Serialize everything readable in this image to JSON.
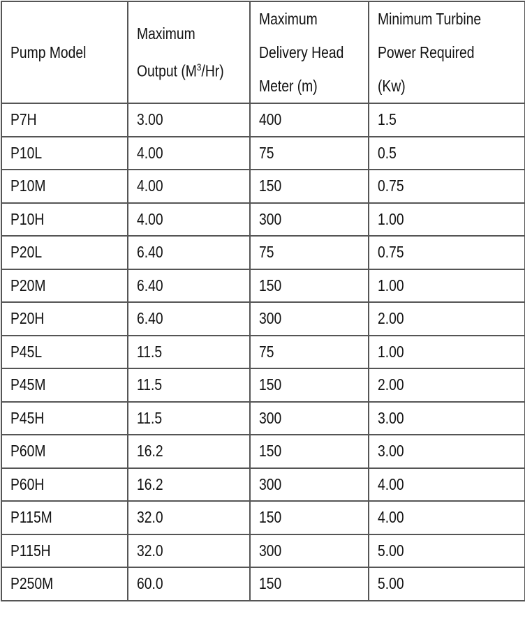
{
  "table": {
    "headers": [
      {
        "lines": [
          "Pump Model"
        ]
      },
      {
        "lines": [
          "Maximum",
          "Output (M",
          "3",
          "/Hr)"
        ]
      },
      {
        "lines": [
          "Maximum",
          "Delivery Head",
          "Meter (m)"
        ]
      },
      {
        "lines": [
          "Minimum Turbine",
          "Power Required",
          "(Kw)"
        ]
      }
    ],
    "rows": [
      [
        "P7H",
        "3.00",
        "400",
        "1.5"
      ],
      [
        "P10L",
        "4.00",
        "75",
        "0.5"
      ],
      [
        "P10M",
        "4.00",
        "150",
        "0.75"
      ],
      [
        "P10H",
        "4.00",
        "300",
        "1.00"
      ],
      [
        "P20L",
        "6.40",
        "75",
        "0.75"
      ],
      [
        "P20M",
        "6.40",
        "150",
        "1.00"
      ],
      [
        "P20H",
        "6.40",
        "300",
        "2.00"
      ],
      [
        "P45L",
        "11.5",
        "75",
        "1.00"
      ],
      [
        "P45M",
        "11.5",
        "150",
        "2.00"
      ],
      [
        "P45H",
        "11.5",
        "300",
        "3.00"
      ],
      [
        "P60M",
        "16.2",
        "150",
        "3.00"
      ],
      [
        "P60H",
        "16.2",
        "300",
        "4.00"
      ],
      [
        "P115M",
        "32.0",
        "150",
        "4.00"
      ],
      [
        "P115H",
        "32.0",
        "300",
        "5.00"
      ],
      [
        "P250M",
        "60.0",
        "150",
        "5.00"
      ]
    ]
  }
}
